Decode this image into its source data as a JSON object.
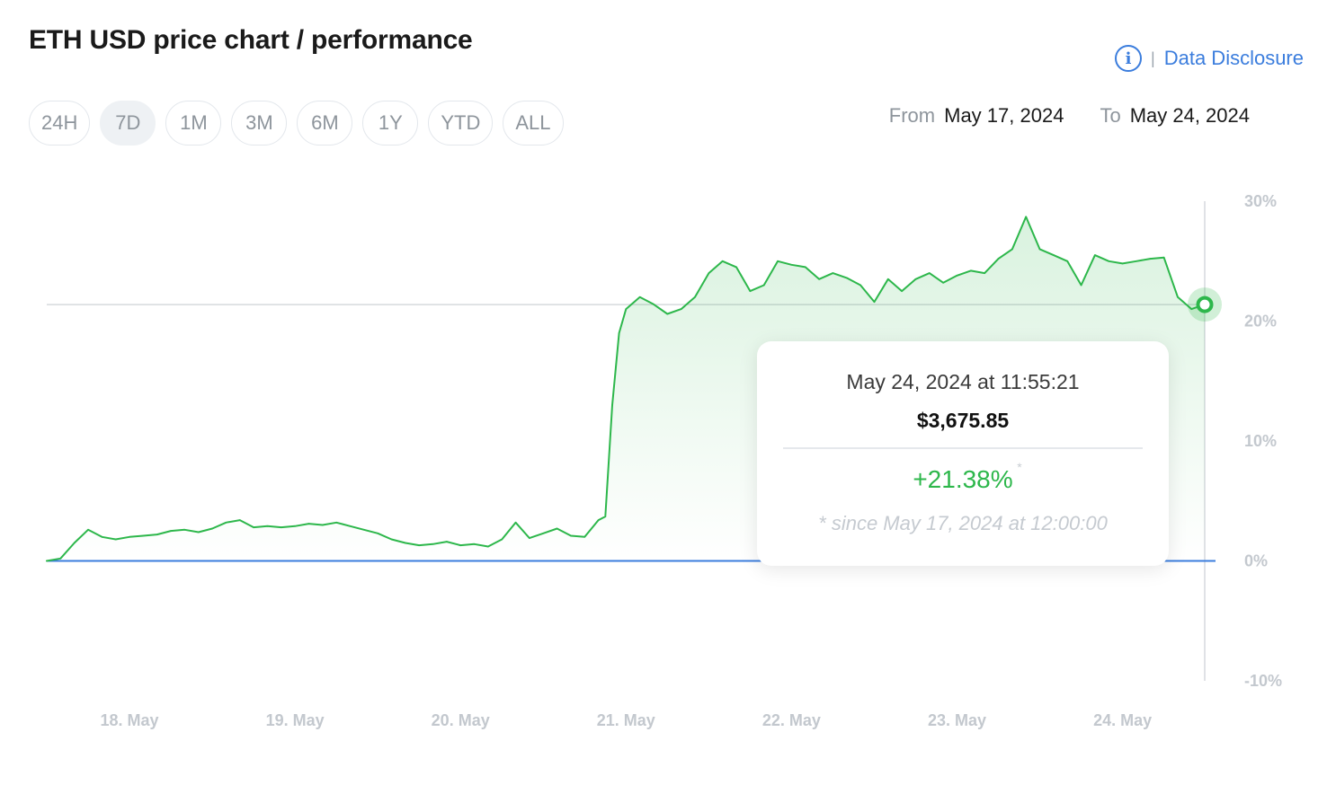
{
  "title": "ETH USD price chart / performance",
  "disclosure": {
    "info_icon": "info-icon",
    "separator": "|",
    "link_label": "Data Disclosure"
  },
  "ranges": [
    {
      "label": "24H",
      "active": false
    },
    {
      "label": "7D",
      "active": true
    },
    {
      "label": "1M",
      "active": false
    },
    {
      "label": "3M",
      "active": false
    },
    {
      "label": "6M",
      "active": false
    },
    {
      "label": "1Y",
      "active": false
    },
    {
      "label": "YTD",
      "active": false
    },
    {
      "label": "ALL",
      "active": false
    }
  ],
  "dates": {
    "from_label": "From",
    "from_value": "May 17, 2024",
    "to_label": "To",
    "to_value": "May 24, 2024"
  },
  "tooltip": {
    "datetime": "May 24, 2024 at 11:55:21",
    "price": "$3,675.85",
    "change": "+21.38%",
    "star": "*",
    "since": "* since May 17, 2024 at 12:00:00"
  },
  "colors": {
    "line": "#2db74b",
    "fill": "#2db74b",
    "baseline": "#3b7ddd",
    "grid": "#d6d9dd",
    "axis_text": "#c3c8ce",
    "link": "#3b7ddd"
  },
  "chart_data": {
    "type": "area",
    "title": "ETH USD price chart / performance",
    "xlabel": "",
    "ylabel": "",
    "x_unit": "date",
    "xlim": [
      "2024-05-17T12:00",
      "2024-05-24T11:55"
    ],
    "ylim": [
      -10,
      30
    ],
    "y_ticks": [
      "30%",
      "20%",
      "10%",
      "0%",
      "-10%"
    ],
    "y_tick_values": [
      30,
      20,
      10,
      0,
      -10
    ],
    "x_ticks": [
      "18. May",
      "19. May",
      "20. May",
      "21. May",
      "22. May",
      "23. May",
      "24. May"
    ],
    "x_tick_values": [
      "2024-05-18",
      "2024-05-19",
      "2024-05-20",
      "2024-05-21",
      "2024-05-22",
      "2024-05-23",
      "2024-05-24"
    ],
    "reference_line": 21.38,
    "baseline": 0,
    "grid": false,
    "series": [
      {
        "x": [
          "2024-05-17T12:00",
          "2024-05-17T14:00",
          "2024-05-17T16:00",
          "2024-05-17T18:00",
          "2024-05-17T20:00",
          "2024-05-17T22:00",
          "2024-05-18T00:00",
          "2024-05-18T02:00",
          "2024-05-18T04:00",
          "2024-05-18T06:00",
          "2024-05-18T08:00",
          "2024-05-18T10:00",
          "2024-05-18T12:00",
          "2024-05-18T14:00",
          "2024-05-18T16:00",
          "2024-05-18T18:00",
          "2024-05-18T20:00",
          "2024-05-18T22:00",
          "2024-05-19T00:00",
          "2024-05-19T02:00",
          "2024-05-19T04:00",
          "2024-05-19T06:00",
          "2024-05-19T08:00",
          "2024-05-19T10:00",
          "2024-05-19T12:00",
          "2024-05-19T14:00",
          "2024-05-19T16:00",
          "2024-05-19T18:00",
          "2024-05-19T20:00",
          "2024-05-19T22:00",
          "2024-05-20T00:00",
          "2024-05-20T02:00",
          "2024-05-20T04:00",
          "2024-05-20T06:00",
          "2024-05-20T08:00",
          "2024-05-20T10:00",
          "2024-05-20T12:00",
          "2024-05-20T14:00",
          "2024-05-20T16:00",
          "2024-05-20T18:00",
          "2024-05-20T20:00",
          "2024-05-20T21:00",
          "2024-05-20T22:00",
          "2024-05-20T23:00",
          "2024-05-21T00:00",
          "2024-05-21T02:00",
          "2024-05-21T04:00",
          "2024-05-21T06:00",
          "2024-05-21T08:00",
          "2024-05-21T10:00",
          "2024-05-21T12:00",
          "2024-05-21T14:00",
          "2024-05-21T16:00",
          "2024-05-21T18:00",
          "2024-05-21T20:00",
          "2024-05-21T22:00",
          "2024-05-22T00:00",
          "2024-05-22T02:00",
          "2024-05-22T04:00",
          "2024-05-22T06:00",
          "2024-05-22T08:00",
          "2024-05-22T10:00",
          "2024-05-22T12:00",
          "2024-05-22T14:00",
          "2024-05-22T16:00",
          "2024-05-22T18:00",
          "2024-05-22T20:00",
          "2024-05-22T22:00",
          "2024-05-23T00:00",
          "2024-05-23T02:00",
          "2024-05-23T04:00",
          "2024-05-23T06:00",
          "2024-05-23T08:00",
          "2024-05-23T10:00",
          "2024-05-23T12:00",
          "2024-05-23T14:00",
          "2024-05-23T16:00",
          "2024-05-23T18:00",
          "2024-05-23T20:00",
          "2024-05-23T22:00",
          "2024-05-24T00:00",
          "2024-05-24T02:00",
          "2024-05-24T04:00",
          "2024-05-24T06:00",
          "2024-05-24T08:00",
          "2024-05-24T10:00",
          "2024-05-24T11:55"
        ],
        "y": [
          0.0,
          0.2,
          1.5,
          2.6,
          2.0,
          1.8,
          2.0,
          2.1,
          2.2,
          2.5,
          2.6,
          2.4,
          2.7,
          3.2,
          3.4,
          2.8,
          2.9,
          2.8,
          2.9,
          3.1,
          3.0,
          3.2,
          2.9,
          2.6,
          2.3,
          1.8,
          1.5,
          1.3,
          1.4,
          1.6,
          1.3,
          1.4,
          1.2,
          1.8,
          3.2,
          1.9,
          2.3,
          2.7,
          2.1,
          2.0,
          3.4,
          3.7,
          13.0,
          19.0,
          21.0,
          22.0,
          21.4,
          20.6,
          21.0,
          22.0,
          24.0,
          25.0,
          24.5,
          22.5,
          23.0,
          25.0,
          24.7,
          24.5,
          23.5,
          24.0,
          23.6,
          23.0,
          21.6,
          23.5,
          22.5,
          23.5,
          24.0,
          23.2,
          23.8,
          24.2,
          24.0,
          25.2,
          26.0,
          28.7,
          26.0,
          25.5,
          25.0,
          23.0,
          25.5,
          25.0,
          24.8,
          25.0,
          25.2,
          25.3,
          22.0,
          21.0,
          21.38
        ]
      }
    ]
  }
}
